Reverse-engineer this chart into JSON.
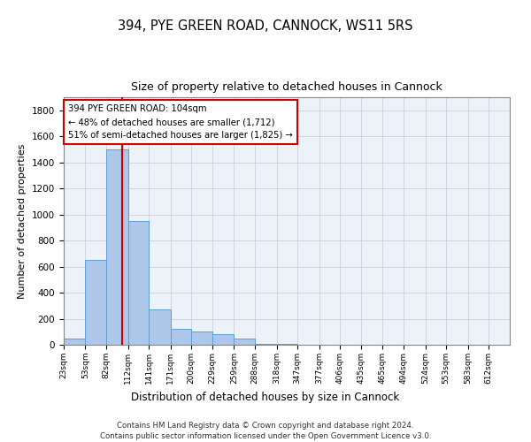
{
  "title": "394, PYE GREEN ROAD, CANNOCK, WS11 5RS",
  "subtitle": "Size of property relative to detached houses in Cannock",
  "xlabel": "Distribution of detached houses by size in Cannock",
  "ylabel": "Number of detached properties",
  "bar_edges": [
    23,
    53,
    82,
    112,
    141,
    171,
    200,
    229,
    259,
    288,
    318,
    347,
    377,
    406,
    435,
    465,
    494,
    524,
    553,
    583,
    612
  ],
  "bar_heights": [
    50,
    650,
    1500,
    950,
    270,
    120,
    100,
    80,
    50,
    5,
    5,
    3,
    2,
    2,
    2,
    1,
    1,
    1,
    1,
    1
  ],
  "bar_color": "#aec6e8",
  "bar_edge_color": "#5a9fd4",
  "grid_color": "#c8d0dc",
  "vline_x": 104,
  "vline_color": "#cc0000",
  "annotation_line1": "394 PYE GREEN ROAD: 104sqm",
  "annotation_line2": "← 48% of detached houses are smaller (1,712)",
  "annotation_line3": "51% of semi-detached houses are larger (1,825) →",
  "annotation_box_color": "#cc0000",
  "ylim": [
    0,
    1900
  ],
  "yticks": [
    0,
    200,
    400,
    600,
    800,
    1000,
    1200,
    1400,
    1600,
    1800
  ],
  "footer_line1": "Contains HM Land Registry data © Crown copyright and database right 2024.",
  "footer_line2": "Contains public sector information licensed under the Open Government Licence v3.0.",
  "background_color": "#edf1f8"
}
